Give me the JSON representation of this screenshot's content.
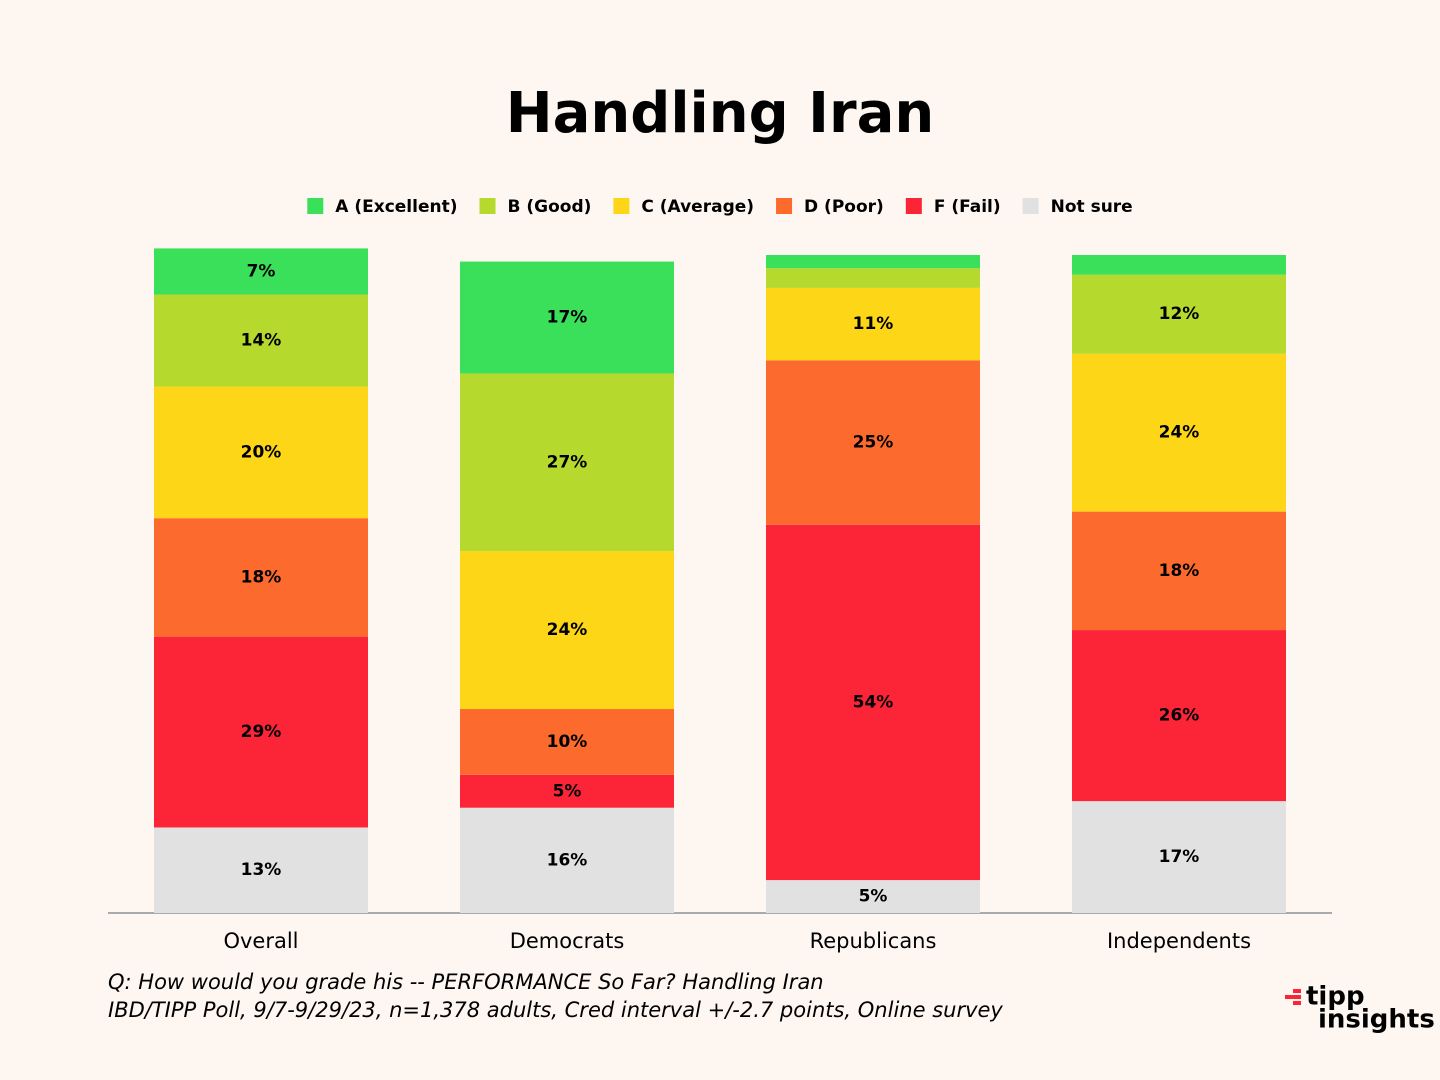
{
  "chart_data": {
    "type": "stacked_bar",
    "title": "Handling Iran",
    "categories": [
      "Overall",
      "Democrats",
      "Republicans",
      "Independents"
    ],
    "ylim": [
      0,
      100
    ],
    "legend_position": "top",
    "series": [
      {
        "name": "Not sure",
        "color": "#e1e1e1",
        "values": [
          13,
          16,
          5,
          17
        ],
        "value_labels": [
          "13%",
          "16%",
          "5%",
          "17%"
        ]
      },
      {
        "name": "F (Fail)",
        "color": "#fc2537",
        "values": [
          29,
          5,
          54,
          26
        ],
        "value_labels": [
          "29%",
          "5%",
          "54%",
          "26%"
        ]
      },
      {
        "name": "D (Poor)",
        "color": "#fd6a2d",
        "values": [
          18,
          10,
          25,
          18
        ],
        "value_labels": [
          "18%",
          "10%",
          "25%",
          "18%"
        ]
      },
      {
        "name": "C (Average)",
        "color": "#fcd617",
        "values": [
          20,
          24,
          11,
          24
        ],
        "value_labels": [
          "20%",
          "24%",
          "11%",
          "24%"
        ]
      },
      {
        "name": "B (Good)",
        "color": "#b5d92d",
        "values": [
          14,
          27,
          3,
          12
        ],
        "value_labels": [
          "14%",
          "27%",
          null,
          "12%"
        ]
      },
      {
        "name": "A (Excellent)",
        "color": "#3ae05a",
        "values": [
          7,
          17,
          2,
          3
        ],
        "value_labels": [
          "7%",
          "17%",
          null,
          null
        ]
      }
    ],
    "notes": [
      "Q:  How would you grade his -- PERFORMANCE So Far? Handling Iran",
      "IBD/TIPP Poll, 9/7-9/29/23, n=1,378 adults, Cred interval +/-2.7 points, Online survey"
    ],
    "logo": [
      "tipp",
      "insights"
    ]
  }
}
